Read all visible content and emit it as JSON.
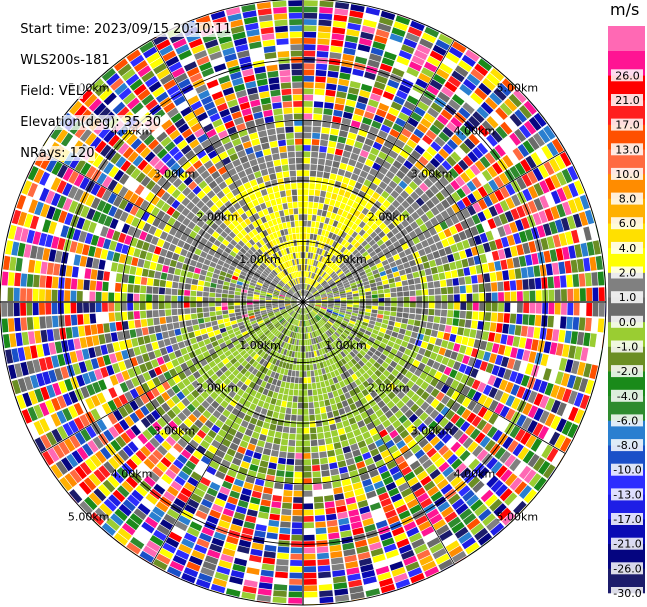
{
  "info": {
    "start_time": "Start time: 2023/09/15 20:10:11",
    "instrument": "WLS200s-181",
    "field": "Field: VEL",
    "elevation": "Elevation(deg): 35.30",
    "nrays": "NRays: 120"
  },
  "chart_data": {
    "type": "heatmap",
    "projection": "polar PPI",
    "field": "VEL",
    "unit": "m/s",
    "range_rings_km": [
      1.0,
      2.0,
      3.0,
      4.0,
      5.0
    ],
    "ring_labels": [
      "1.00km",
      "2.00km",
      "3.00km",
      "4.00km",
      "5.00km"
    ],
    "max_range_km": 5.0,
    "nrays": 120,
    "colorbar": {
      "boundaries": [
        -30.0,
        -26.0,
        -21.0,
        -17.0,
        -13.0,
        -10.0,
        -8.0,
        -6.0,
        -4.0,
        -2.0,
        -1.0,
        0.0,
        1.0,
        2.0,
        4.0,
        6.0,
        8.0,
        10.0,
        13.0,
        17.0,
        21.0,
        26.0
      ],
      "tick_labels": [
        "-30.0",
        "-26.0",
        "-21.0",
        "-17.0",
        "-13.0",
        "-10.0",
        "-8.0",
        "-6.0",
        "-4.0",
        "-2.0",
        "-1.0",
        "0.0",
        "1.0",
        "2.0",
        "4.0",
        "6.0",
        "8.0",
        "10.0",
        "13.0",
        "17.0",
        "21.0",
        "26.0"
      ],
      "colors": [
        "#1c1c6b",
        "#050580",
        "#0a0ab4",
        "#1e1ee6",
        "#2d2dff",
        "#1a50c8",
        "#2a7fd0",
        "#2e8b2e",
        "#1a8a1a",
        "#6b8e23",
        "#9acd32",
        "#6b6b6b",
        "#808080",
        "#ffff00",
        "#ffe000",
        "#ffb000",
        "#ff8c00",
        "#ff6a40",
        "#ff5000",
        "#ff1e1e",
        "#ff0000",
        "#ff1493",
        "#ff69b4"
      ]
    }
  }
}
